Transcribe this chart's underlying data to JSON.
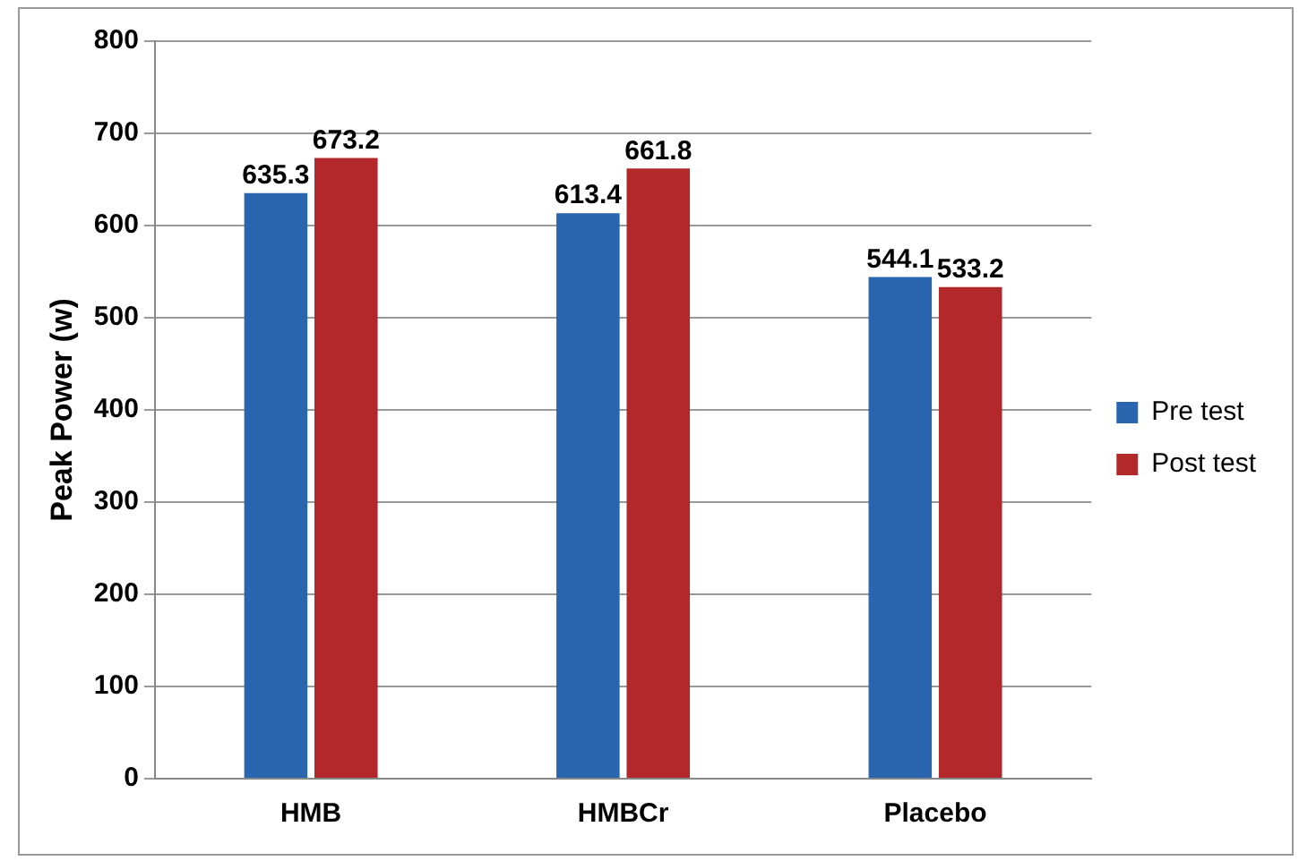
{
  "chart_data": {
    "type": "bar",
    "ylabel": "Peak Power (w)",
    "categories": [
      "HMB",
      "HMBCr",
      "Placebo"
    ],
    "series": [
      {
        "name": "Pre test",
        "color": "#2a66b0",
        "values": [
          635.3,
          613.4,
          544.1
        ]
      },
      {
        "name": "Post test",
        "color": "#b3282a",
        "values": [
          673.2,
          661.8,
          533.2
        ]
      }
    ],
    "ylim": [
      0,
      800
    ],
    "yticks": [
      0,
      100,
      200,
      300,
      400,
      500,
      600,
      700,
      800
    ],
    "grid": "y",
    "legend": "right",
    "data_labels": true
  }
}
